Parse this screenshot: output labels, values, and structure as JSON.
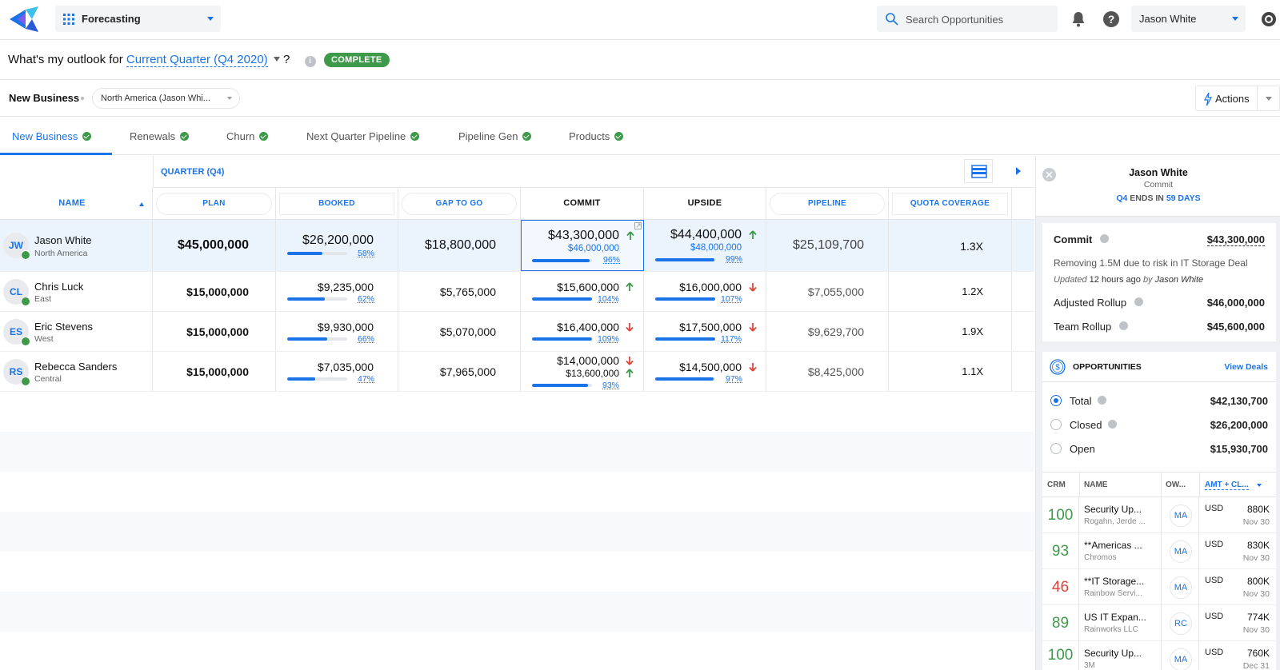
{
  "header": {
    "app_name": "Forecasting",
    "search_placeholder": "Search Opportunities",
    "user_name": "Jason White"
  },
  "outlook": {
    "prefix": "What's my outlook for",
    "period": "Current Quarter (Q4 2020)",
    "suffix": "?",
    "info": "i",
    "status": "COMPLETE"
  },
  "filters": {
    "segment": "New Business",
    "region": "North America (Jason Whi...",
    "actions_label": "Actions"
  },
  "tabs": [
    {
      "label": "New Business"
    },
    {
      "label": "Renewals"
    },
    {
      "label": "Churn"
    },
    {
      "label": "Next Quarter Pipeline"
    },
    {
      "label": "Pipeline Gen"
    },
    {
      "label": "Products"
    }
  ],
  "grid": {
    "quarter_label": "QUARTER (Q4)",
    "columns": {
      "name": "NAME",
      "plan": "PLAN",
      "booked": "BOOKED",
      "gap": "GAP TO GO",
      "commit": "COMMIT",
      "upside": "UPSIDE",
      "pipeline": "PIPELINE",
      "coverage": "QUOTA COVERAGE"
    },
    "rows": [
      {
        "initials": "JW",
        "name": "Jason White",
        "region": "North America",
        "plan": "$45,000,000",
        "booked": "$26,200,000",
        "booked_pct": "58%",
        "booked_frac": 0.58,
        "gap": "$18,800,000",
        "commit": "$43,300,000",
        "commit_sub": "$46,000,000",
        "commit_pct": "96%",
        "commit_frac": 0.96,
        "upside": "$44,400,000",
        "upside_sub": "$48,000,000",
        "upside_pct": "99%",
        "upside_frac": 0.99,
        "pipeline": "$25,109,700",
        "coverage": "1.3X"
      },
      {
        "initials": "CL",
        "name": "Chris Luck",
        "region": "East",
        "plan": "$15,000,000",
        "booked": "$9,235,000",
        "booked_pct": "62%",
        "booked_frac": 0.62,
        "gap": "$5,765,000",
        "commit": "$15,600,000",
        "commit_pct": "104%",
        "commit_frac": 1.0,
        "upside": "$16,000,000",
        "upside_pct": "107%",
        "upside_frac": 1.0,
        "pipeline": "$7,055,000",
        "coverage": "1.2X"
      },
      {
        "initials": "ES",
        "name": "Eric Stevens",
        "region": "West",
        "plan": "$15,000,000",
        "booked": "$9,930,000",
        "booked_pct": "66%",
        "booked_frac": 0.66,
        "gap": "$5,070,000",
        "commit": "$16,400,000",
        "commit_pct": "109%",
        "commit_frac": 1.0,
        "upside": "$17,500,000",
        "upside_pct": "117%",
        "upside_frac": 1.0,
        "pipeline": "$9,629,700",
        "coverage": "1.9X"
      },
      {
        "initials": "RS",
        "name": "Rebecca Sanders",
        "region": "Central",
        "plan": "$15,000,000",
        "booked": "$7,035,000",
        "booked_pct": "47%",
        "booked_frac": 0.47,
        "gap": "$7,965,000",
        "commit": "$14,000,000",
        "commit_sub": "$13,600,000",
        "commit_pct": "93%",
        "commit_frac": 0.93,
        "upside": "$14,500,000",
        "upside_pct": "97%",
        "upside_frac": 0.97,
        "pipeline": "$8,425,000",
        "coverage": "1.1X"
      }
    ]
  },
  "panel": {
    "user": "Jason White",
    "category": "Commit",
    "quarter": "Q4",
    "ends_in": "ENDS IN",
    "days": "59 DAYS",
    "commit_label": "Commit",
    "commit_value": "$43,300,000",
    "note": "Removing 1.5M due to risk in IT Storage Deal",
    "updated_prefix": "Updated",
    "updated_when": "12 hours ago",
    "updated_by_prefix": "by",
    "updated_by": "Jason White",
    "adjusted_label": "Adjusted Rollup",
    "adjusted_value": "$46,000,000",
    "team_label": "Team Rollup",
    "team_value": "$45,600,000",
    "opps_title": "OPPORTUNITIES",
    "view_deals": "View Deals",
    "totals": [
      {
        "label": "Total",
        "value": "$42,130,700"
      },
      {
        "label": "Closed",
        "value": "$26,200,000"
      },
      {
        "label": "Open",
        "value": "$15,930,700"
      }
    ],
    "opp_cols": {
      "crm": "CRM",
      "name": "NAME",
      "owner": "OW...",
      "amount": "AMT + CL..."
    },
    "opps": [
      {
        "score": "100",
        "name": "Security Up...",
        "account": "Rogahn, Jerde ...",
        "owner": "MA",
        "currency": "USD",
        "amount": "880K",
        "close": "Nov 30"
      },
      {
        "score": "93",
        "name": "**Americas ...",
        "account": "Chromos",
        "owner": "MA",
        "currency": "USD",
        "amount": "830K",
        "close": "Nov 30"
      },
      {
        "score": "46",
        "name": "**IT Storage...",
        "account": "Rainbow Servi...",
        "owner": "MA",
        "currency": "USD",
        "amount": "800K",
        "close": "Nov 30"
      },
      {
        "score": "89",
        "name": "US IT Expan...",
        "account": "Rainworks LLC",
        "owner": "RC",
        "currency": "USD",
        "amount": "774K",
        "close": "Nov 30"
      },
      {
        "score": "100",
        "name": "Security Up...",
        "account": "3M",
        "owner": "MA",
        "currency": "USD",
        "amount": "760K",
        "close": "Dec 31"
      }
    ]
  },
  "colors": {
    "accent": "#1a73e8",
    "positive": "#3e9a4a",
    "negative": "#e0453a"
  }
}
